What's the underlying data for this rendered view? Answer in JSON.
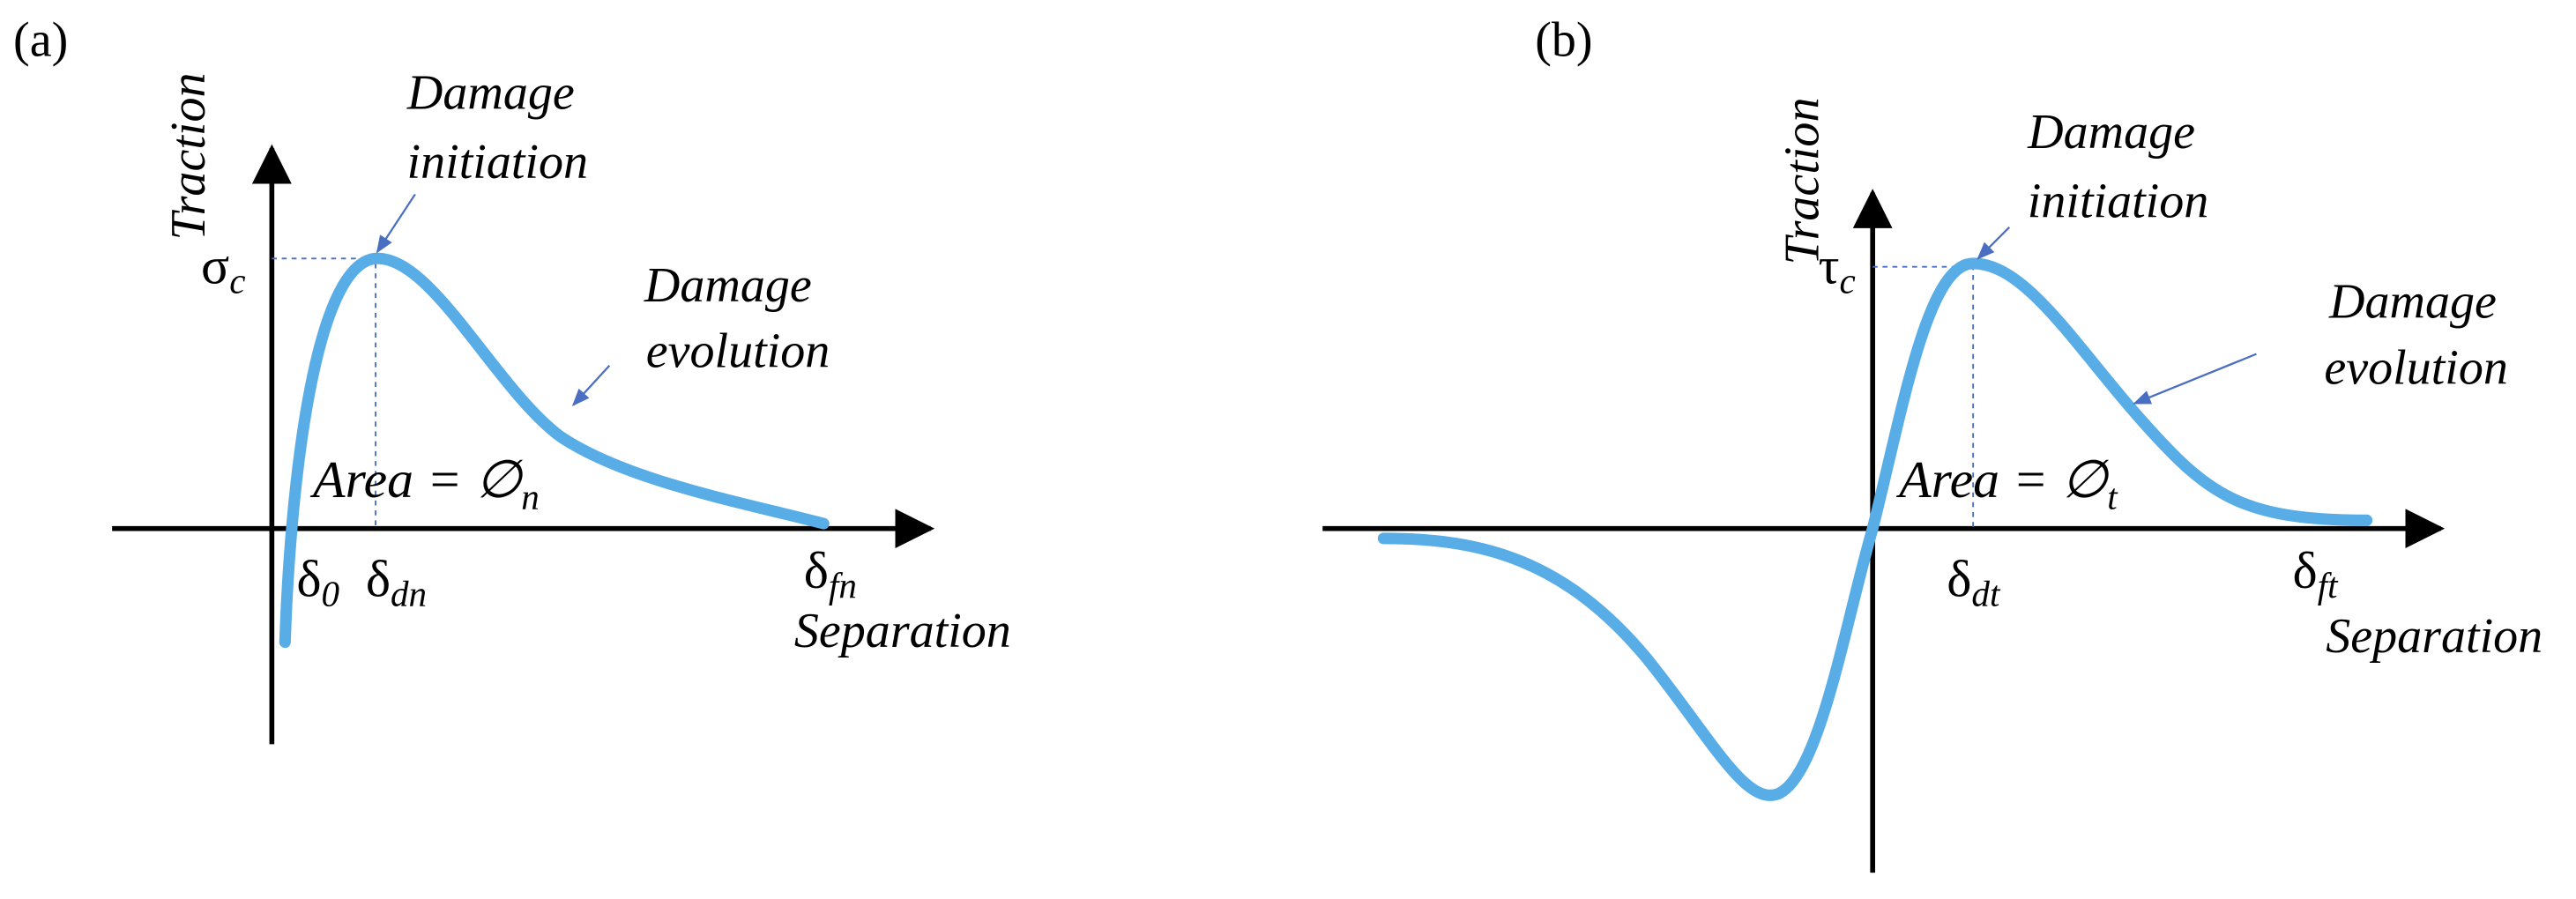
{
  "panels": [
    {
      "label": "(a)",
      "y_axis": "Traction",
      "x_axis": "Separation",
      "peak_symbol": {
        "base": "σ",
        "sub": "c"
      },
      "initiation": [
        "Damage",
        "initiation"
      ],
      "evolution": [
        "Damage",
        "evolution"
      ],
      "area": {
        "base": "Area = ∅",
        "sub": "n"
      },
      "x_marks": [
        {
          "base": "δ",
          "sub": "0"
        },
        {
          "base": "δ",
          "sub": "dn"
        },
        {
          "base": "δ",
          "sub": "fn"
        }
      ]
    },
    {
      "label": "(b)",
      "y_axis": "Traction",
      "x_axis": "Separation",
      "peak_symbol": {
        "base": "τ",
        "sub": "c"
      },
      "initiation": [
        "Damage",
        "initiation"
      ],
      "evolution": [
        "Damage",
        "evolution"
      ],
      "area": {
        "base": "Area = ∅",
        "sub": "t"
      },
      "x_marks": [
        {
          "base": "δ",
          "sub": "dt"
        },
        {
          "base": "δ",
          "sub": "ft"
        }
      ]
    }
  ]
}
